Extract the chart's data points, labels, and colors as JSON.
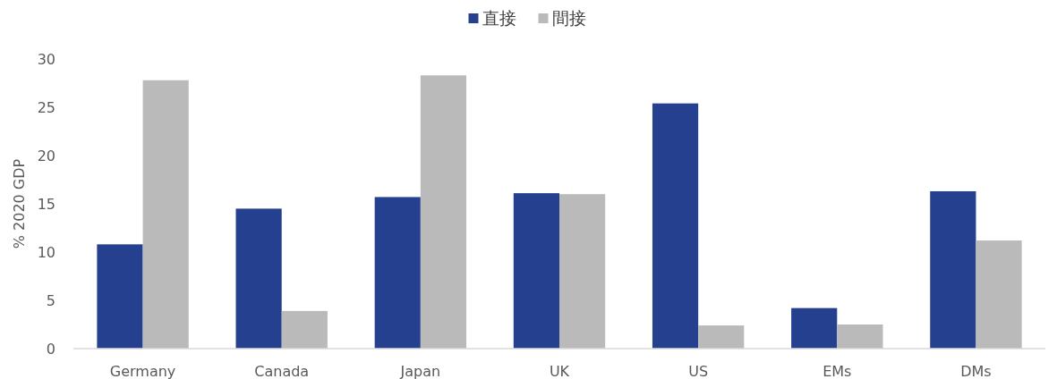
{
  "chart_data": {
    "type": "bar",
    "ylabel": "% 2020 GDP",
    "categories": [
      "Germany",
      "Canada",
      "Japan",
      "UK",
      "US",
      "EMs",
      "DMs"
    ],
    "series": [
      {
        "name": "直接",
        "color": "#25408f",
        "values": [
          10.8,
          14.5,
          15.7,
          16.1,
          25.4,
          4.2,
          16.3
        ]
      },
      {
        "name": "間接",
        "color": "#bababa",
        "values": [
          27.8,
          3.9,
          28.3,
          16.0,
          2.4,
          2.5,
          11.2
        ]
      }
    ],
    "ylim": [
      0,
      30
    ],
    "yticks": [
      0,
      5,
      10,
      15,
      20,
      25,
      30
    ],
    "legend": "top"
  }
}
